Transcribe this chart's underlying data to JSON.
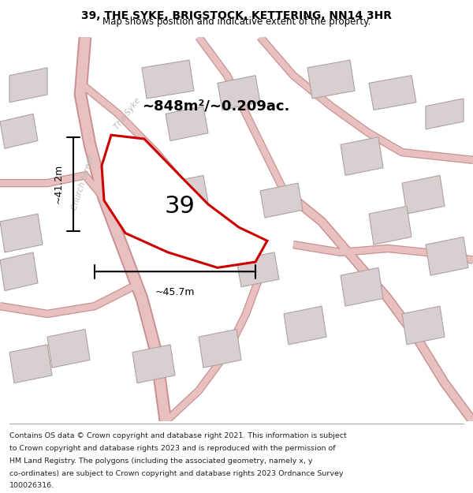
{
  "title": "39, THE SYKE, BRIGSTOCK, KETTERING, NN14 3HR",
  "subtitle": "Map shows position and indicative extent of the property.",
  "footer_lines": [
    "Contains OS data © Crown copyright and database right 2021. This information is subject",
    "to Crown copyright and database rights 2023 and is reproduced with the permission of",
    "HM Land Registry. The polygons (including the associated geometry, namely x, y",
    "co-ordinates) are subject to Crown copyright and database rights 2023 Ordnance Survey",
    "100026316."
  ],
  "area_label": "~848m²/~0.209ac.",
  "number_label": "39",
  "dim_horiz": "~45.7m",
  "dim_vert": "~41.2m",
  "map_bg": "#f5f0f0",
  "road_color": "#e8c0c0",
  "road_outline": "#c89090",
  "building_color": "#d8d0d0",
  "building_outline": "#b0a0a0",
  "property_fill": "white",
  "property_outline": "#cc0000",
  "street_label_color": "#bbbbbb",
  "title_color": "#000000",
  "footer_color": "#222222"
}
